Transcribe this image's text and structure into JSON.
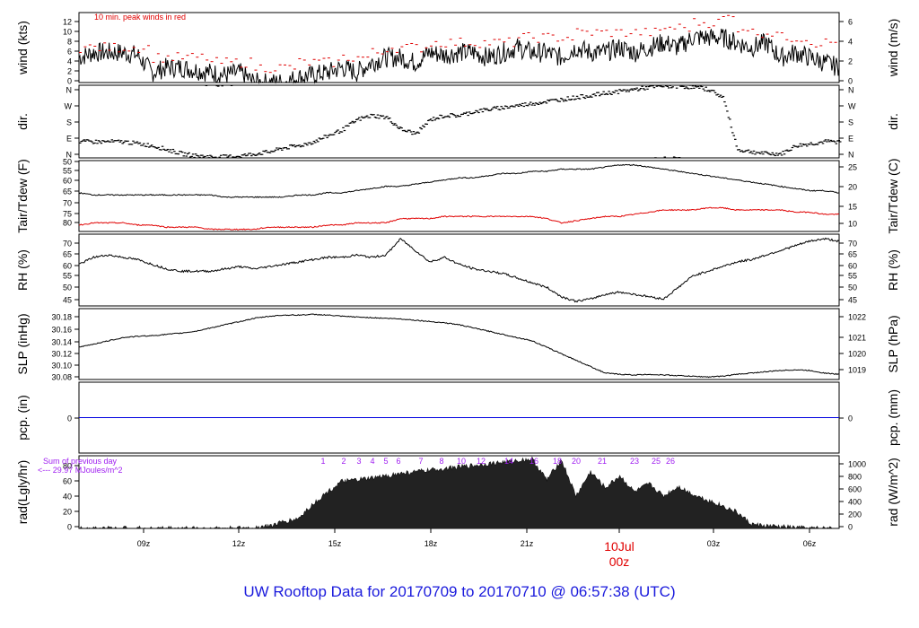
{
  "title": "UW Rooftop Data for 20170709  to  20170710 @ 06:57:38  (UTC)",
  "colors": {
    "title": "#1a1adc",
    "accent": "#e00000",
    "purple": "#a020f0",
    "line": "#000000",
    "pcp": "#0000e0"
  },
  "x_axis": {
    "ticks": [
      "09z",
      "12z",
      "15z",
      "18z",
      "21z",
      "03z",
      "06z"
    ],
    "midnight_label": "10Jul",
    "midnight_tick": "00z"
  },
  "chart_data": [
    {
      "type": "line",
      "id": "wind",
      "ylabel_left": "wind (kts)",
      "ylabel_right": "wind (m/s)",
      "annotation": "10 min. peak winds in red",
      "yticks_left": [
        "0",
        "2",
        "4",
        "6",
        "8",
        "10",
        "12"
      ],
      "yticks_right": [
        "0",
        "2",
        "4",
        "6"
      ],
      "ylim": [
        0,
        14
      ],
      "series": [
        {
          "values": [
            5,
            6,
            6,
            6,
            5.5,
            2,
            3,
            3,
            2.5,
            2,
            1.5,
            2,
            0,
            0,
            0,
            1,
            1.5,
            2,
            3,
            2,
            4,
            5,
            5,
            4,
            6,
            5.5,
            6,
            6,
            5,
            6,
            7,
            6,
            6,
            5,
            7,
            6,
            6,
            7,
            6,
            7,
            8,
            7,
            9,
            9,
            9,
            8,
            7,
            8,
            5,
            6,
            5,
            4,
            3
          ]
        },
        {
          "values": [
            7,
            7,
            7,
            7,
            7,
            5,
            5,
            5,
            5,
            4,
            4,
            4,
            3,
            3,
            3,
            4,
            4,
            4,
            5,
            5,
            6,
            7,
            7,
            7,
            8,
            8,
            8,
            8,
            8,
            8,
            9,
            9,
            9,
            9,
            10,
            10,
            10,
            10,
            10,
            10,
            11,
            11,
            12,
            12,
            13,
            11,
            10,
            10,
            9,
            9,
            8,
            8,
            7
          ]
        }
      ]
    },
    {
      "type": "scatter",
      "id": "dir",
      "ylabel_left": "dir.",
      "ylabel_right": "dir.",
      "yticks_left": [
        "N",
        "W",
        "S",
        "E",
        "N"
      ],
      "yticks_right": [
        "N",
        "W",
        "S",
        "E",
        "N"
      ],
      "ylim": [
        0,
        360
      ],
      "series": [
        {
          "values": [
            80,
            80,
            80,
            80,
            70,
            60,
            40,
            20,
            10,
            5,
            5,
            10,
            20,
            30,
            50,
            60,
            80,
            110,
            140,
            190,
            210,
            200,
            140,
            120,
            190,
            210,
            210,
            230,
            240,
            250,
            260,
            270,
            280,
            290,
            300,
            310,
            320,
            330,
            340,
            350,
            355,
            355,
            350,
            340,
            300,
            40,
            30,
            20,
            20,
            60,
            70,
            80,
            80
          ]
        }
      ]
    },
    {
      "type": "line",
      "id": "temp",
      "ylabel_left": "Tair/Tdew (F)",
      "ylabel_right": "Tair/Tdew (C)",
      "yticks_left": [
        "50",
        "55",
        "60",
        "65",
        "70",
        "75",
        "80"
      ],
      "yticks_right": [
        "10",
        "15",
        "20",
        "25"
      ],
      "ylim": [
        47,
        80
      ],
      "series": [
        {
          "values": [
            65,
            64,
            64,
            64,
            64,
            64,
            64,
            64,
            64,
            64,
            63,
            63,
            63,
            63,
            63,
            64,
            64,
            65,
            65,
            66,
            67,
            68,
            68,
            69,
            70,
            71,
            72,
            72,
            73,
            74,
            74,
            75,
            75,
            76,
            76,
            76,
            77,
            78,
            78,
            77,
            76,
            75,
            74,
            73,
            72,
            71,
            70,
            69,
            68,
            67,
            66,
            66,
            65
          ]
        },
        {
          "values": [
            50,
            51,
            51,
            51,
            50,
            50,
            49,
            49,
            49,
            48,
            48,
            48,
            48,
            49,
            49,
            49,
            49,
            50,
            50,
            51,
            51,
            51,
            53,
            53,
            53,
            54,
            54,
            54,
            54,
            54,
            54,
            54,
            53,
            51,
            52,
            53,
            54,
            54,
            55,
            56,
            57,
            57,
            57,
            58,
            58,
            57,
            57,
            57,
            57,
            56,
            56,
            55,
            55
          ]
        }
      ]
    },
    {
      "type": "line",
      "id": "rh",
      "ylabel_left": "RH (%)",
      "ylabel_right": "RH (%)",
      "yticks_left": [
        "45",
        "50",
        "55",
        "60",
        "65",
        "70"
      ],
      "yticks_right": [
        "45",
        "50",
        "55",
        "60",
        "65",
        "70"
      ],
      "ylim": [
        42,
        73
      ],
      "series": [
        {
          "values": [
            60,
            63,
            64,
            63,
            62,
            60,
            58,
            57,
            57,
            57,
            58,
            59,
            58,
            59,
            60,
            61,
            62,
            63,
            63,
            64,
            63,
            64,
            71,
            66,
            61,
            63,
            60,
            58,
            57,
            56,
            54,
            52,
            50,
            46,
            44,
            45,
            47,
            48,
            47,
            46,
            45,
            50,
            55,
            57,
            59,
            61,
            62,
            64,
            66,
            68,
            70,
            71,
            70
          ]
        }
      ]
    },
    {
      "type": "line",
      "id": "slp",
      "ylabel_left": "SLP (inHg)",
      "ylabel_right": "SLP (hPa)",
      "yticks_left": [
        "30.08",
        "30.10",
        "30.12",
        "30.14",
        "30.16",
        "30.18"
      ],
      "yticks_right": [
        "1019",
        "1020",
        "1021",
        "1022"
      ],
      "ylim": [
        30.08,
        30.19
      ],
      "series": [
        {
          "values": [
            30.13,
            30.135,
            30.14,
            30.145,
            30.147,
            30.148,
            30.15,
            30.152,
            30.155,
            30.16,
            30.165,
            30.17,
            30.175,
            30.178,
            30.18,
            30.18,
            30.181,
            30.18,
            30.178,
            30.177,
            30.176,
            30.175,
            30.174,
            30.172,
            30.17,
            30.168,
            30.165,
            30.16,
            30.155,
            30.15,
            30.145,
            30.14,
            30.13,
            30.12,
            30.11,
            30.1,
            30.09,
            30.088,
            30.087,
            30.088,
            30.087,
            30.086,
            30.085,
            30.084,
            30.085,
            30.088,
            30.09,
            30.092,
            30.094,
            30.095,
            30.094,
            30.09,
            30.088
          ]
        }
      ]
    },
    {
      "type": "line",
      "id": "pcp",
      "ylabel_left": "pcp. (in)",
      "ylabel_right": "pcp. (mm)",
      "yticks_left": [
        "0"
      ],
      "yticks_right": [
        "0"
      ],
      "ylim": [
        -1,
        1
      ],
      "series": [
        {
          "values": [
            0,
            0
          ]
        }
      ]
    },
    {
      "type": "area",
      "id": "rad",
      "ylabel_left": "rad(Lgly/hr)",
      "ylabel_right": "rad (W/m^2)",
      "yticks_left": [
        "0",
        "20",
        "40",
        "60",
        "80"
      ],
      "yticks_right": [
        "0",
        "200",
        "400",
        "600",
        "800",
        "1000"
      ],
      "ylim": [
        0,
        90
      ],
      "note_line1": "Sum of previous day",
      "note_line2": "<--- 29.97 MJoules/m^2",
      "hour_markers": [
        "1",
        "2",
        "3",
        "4",
        "5",
        "6",
        "7",
        "8",
        "10",
        "12",
        "14",
        "16",
        "18",
        "20",
        "21",
        "23",
        "25",
        "26"
      ],
      "series": [
        {
          "values": [
            0,
            0,
            0,
            0,
            0,
            0,
            0,
            0,
            0,
            0,
            0,
            0,
            1,
            3,
            8,
            12,
            30,
            45,
            58,
            60,
            62,
            65,
            68,
            70,
            72,
            74,
            76,
            78,
            80,
            82,
            84,
            86,
            60,
            85,
            40,
            70,
            50,
            65,
            45,
            55,
            40,
            52,
            42,
            35,
            28,
            20,
            5,
            3,
            2,
            1,
            0,
            0,
            0
          ]
        }
      ]
    }
  ]
}
